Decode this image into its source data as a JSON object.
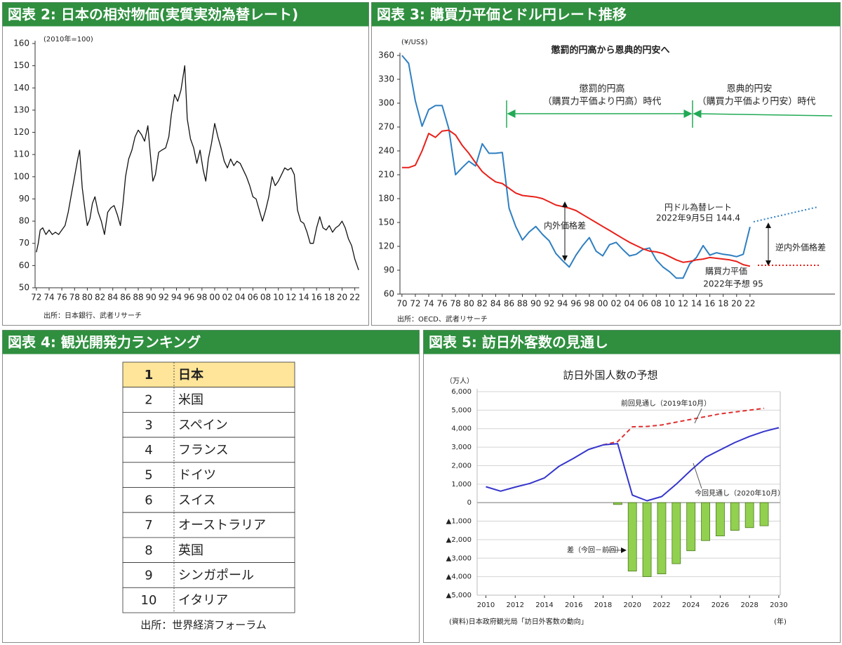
{
  "chart_data": [
    {
      "type": "line",
      "heading": "図表 2: 日本の相対物価(実質実効為替レート)",
      "annotations": [
        "(2010年=100)"
      ],
      "source": "出所：日本銀行、武者リサーチ",
      "x": [
        1972,
        1972.3,
        1972.6,
        1973,
        1973.5,
        1974,
        1974.5,
        1975,
        1975.5,
        1976,
        1976.5,
        1977,
        1977.5,
        1978,
        1978.5,
        1978.8,
        1979.2,
        1979.6,
        1980,
        1980.4,
        1980.8,
        1981.2,
        1981.7,
        1982.2,
        1982.7,
        1983.2,
        1983.7,
        1984.2,
        1984.7,
        1985.2,
        1985.6,
        1986,
        1986.5,
        1987,
        1987.5,
        1988,
        1988.5,
        1989,
        1989.5,
        1989.9,
        1990.3,
        1990.7,
        1991.2,
        1991.7,
        1992.3,
        1992.8,
        1993.2,
        1993.7,
        1994.2,
        1994.7,
        1995.3,
        1995.7,
        1996.2,
        1996.7,
        1997.2,
        1997.7,
        1998.2,
        1998.6,
        1999,
        1999.5,
        2000,
        2000.5,
        2001,
        2001.5,
        2002,
        2002.5,
        2003,
        2003.5,
        2004,
        2004.5,
        2005,
        2005.5,
        2006,
        2006.5,
        2007,
        2007.5,
        2008,
        2008.5,
        2009,
        2009.5,
        2010,
        2010.5,
        2011,
        2011.5,
        2012,
        2012.5,
        2013,
        2013.5,
        2014,
        2014.5,
        2015,
        2015.5,
        2016,
        2016.5,
        2017,
        2017.5,
        2018,
        2018.5,
        2019,
        2019.5,
        2020,
        2020.5,
        2021,
        2021.5,
        2022,
        2022.6
      ],
      "values": [
        66,
        70,
        76,
        77,
        74,
        76,
        74,
        75,
        74,
        76,
        78,
        84,
        92,
        100,
        108,
        112,
        95,
        86,
        78,
        81,
        88,
        91,
        84,
        80,
        74,
        84,
        86,
        87,
        83,
        78,
        88,
        100,
        108,
        112,
        118,
        121,
        119,
        116,
        123,
        110,
        98,
        101,
        111,
        112,
        113,
        118,
        128,
        137,
        134,
        139,
        150,
        126,
        117,
        113,
        106,
        112,
        103,
        98,
        108,
        115,
        124,
        118,
        113,
        107,
        104,
        108,
        105,
        107,
        106,
        103,
        100,
        96,
        91,
        90,
        85,
        80,
        85,
        91,
        100,
        96,
        98,
        101,
        104,
        103,
        104,
        101,
        85,
        80,
        79,
        75,
        70,
        70,
        77,
        82,
        77,
        76,
        78,
        75,
        77,
        78,
        80,
        77,
        72,
        69,
        63,
        58
      ],
      "color": "#111111",
      "xlim": [
        1971.8,
        2022.7
      ],
      "xticks": [
        {
          "value": 1972,
          "label": "72"
        },
        {
          "value": 1974,
          "label": "74"
        },
        {
          "value": 1976,
          "label": "76"
        },
        {
          "value": 1978,
          "label": "78"
        },
        {
          "value": 1980,
          "label": "80"
        },
        {
          "value": 1982,
          "label": "82"
        },
        {
          "value": 1984,
          "label": "84"
        },
        {
          "value": 1986,
          "label": "86"
        },
        {
          "value": 1988,
          "label": "88"
        },
        {
          "value": 1990,
          "label": "90"
        },
        {
          "value": 1992,
          "label": "92"
        },
        {
          "value": 1994,
          "label": "94"
        },
        {
          "value": 1996,
          "label": "96"
        },
        {
          "value": 1998,
          "label": "98"
        },
        {
          "value": 2000,
          "label": "00"
        },
        {
          "value": 2002,
          "label": "02"
        },
        {
          "value": 2004,
          "label": "04"
        },
        {
          "value": 2006,
          "label": "06"
        },
        {
          "value": 2008,
          "label": "08"
        },
        {
          "value": 2010,
          "label": "10"
        },
        {
          "value": 2012,
          "label": "12"
        },
        {
          "value": 2014,
          "label": "14"
        },
        {
          "value": 2016,
          "label": "16"
        },
        {
          "value": 2018,
          "label": "18"
        },
        {
          "value": 2020,
          "label": "20"
        },
        {
          "value": 2022,
          "label": "22"
        }
      ],
      "ylim": [
        50,
        160
      ],
      "yticks": [
        50,
        60,
        70,
        80,
        90,
        100,
        110,
        120,
        130,
        140,
        150,
        160
      ],
      "grid": false
    },
    {
      "type": "line",
      "heading": "図表 3: 購買力平価とドル円レート推移",
      "title": "懲罰的円高から恩典的円安へ",
      "annotations": [
        "(¥/US$)",
        "懲罰的円高",
        "（購買力平価より円高）時代",
        "恩典的円安",
        "（購買力平価より円安）時代",
        "内外価格差",
        "2022年9月5日 144.4",
        "2022年予想 95",
        "逆内外価格差"
      ],
      "source": "出所：OECD、武者リサーチ",
      "x": [
        1970,
        1971,
        1972,
        1973,
        1974,
        1975,
        1976,
        1977,
        1978,
        1979,
        1980,
        1981,
        1982,
        1983,
        1984,
        1985,
        1986,
        1987,
        1988,
        1989,
        1990,
        1991,
        1992,
        1993,
        1994,
        1995,
        1996,
        1997,
        1998,
        1999,
        2000,
        2001,
        2002,
        2003,
        2004,
        2005,
        2006,
        2007,
        2008,
        2009,
        2010,
        2011,
        2012,
        2013,
        2014,
        2015,
        2016,
        2017,
        2018,
        2019,
        2020,
        2021,
        2022
      ],
      "series": [
        {
          "name": "円ドル為替レート",
          "color": "#2f7fc1",
          "values": [
            360,
            350,
            303,
            271,
            292,
            297,
            297,
            268,
            210,
            219,
            227,
            221,
            249,
            237,
            237,
            238,
            168,
            145,
            128,
            138,
            145,
            135,
            127,
            111,
            102,
            94,
            109,
            121,
            131,
            114,
            108,
            122,
            125,
            116,
            108,
            110,
            116,
            118,
            103,
            94,
            88,
            80,
            80,
            98,
            106,
            121,
            109,
            112,
            110,
            109,
            107,
            110,
            144.4
          ]
        },
        {
          "name": "購買力平価",
          "color": "#e8201a",
          "values": [
            219,
            219,
            222,
            240,
            262,
            257,
            265,
            266,
            260,
            247,
            237,
            225,
            214,
            207,
            201,
            199,
            193,
            187,
            184,
            183,
            182,
            180,
            176,
            172,
            170,
            168,
            165,
            160,
            155,
            150,
            145,
            140,
            135,
            130,
            125,
            121,
            117,
            114,
            113,
            111,
            107,
            103,
            100,
            101,
            103,
            104,
            106,
            105,
            104,
            103,
            101,
            97,
            95
          ]
        }
      ],
      "xlim": [
        1969.7,
        2034.7
      ],
      "xticks": [
        {
          "value": 1970,
          "label": "70"
        },
        {
          "value": 1972,
          "label": "72"
        },
        {
          "value": 1974,
          "label": "74"
        },
        {
          "value": 1976,
          "label": "76"
        },
        {
          "value": 1978,
          "label": "78"
        },
        {
          "value": 1980,
          "label": "80"
        },
        {
          "value": 1982,
          "label": "82"
        },
        {
          "value": 1984,
          "label": "84"
        },
        {
          "value": 1986,
          "label": "86"
        },
        {
          "value": 1988,
          "label": "88"
        },
        {
          "value": 1990,
          "label": "90"
        },
        {
          "value": 1992,
          "label": "92"
        },
        {
          "value": 1994,
          "label": "94"
        },
        {
          "value": 1996,
          "label": "96"
        },
        {
          "value": 1998,
          "label": "98"
        },
        {
          "value": 2000,
          "label": "00"
        },
        {
          "value": 2002,
          "label": "02"
        },
        {
          "value": 2004,
          "label": "04"
        },
        {
          "value": 2006,
          "label": "06"
        },
        {
          "value": 2008,
          "label": "08"
        },
        {
          "value": 2010,
          "label": "10"
        },
        {
          "value": 2012,
          "label": "12"
        },
        {
          "value": 2014,
          "label": "14"
        },
        {
          "value": 2016,
          "label": "16"
        },
        {
          "value": 2018,
          "label": "18"
        },
        {
          "value": 2020,
          "label": "20"
        },
        {
          "value": 2022,
          "label": "22"
        }
      ],
      "ylim": [
        60,
        360
      ],
      "yticks": [
        60,
        90,
        120,
        150,
        180,
        210,
        240,
        270,
        300,
        330,
        360
      ],
      "grid": false
    },
    {
      "type": "combo",
      "heading": "図表 5: 訪日外客数の見通し",
      "title": "訪日外国人数の予想",
      "annotations": [
        "（万人）",
        "(年)"
      ],
      "source": "(資料)日本政府観光局「訪日外客数の動向」",
      "series": [
        {
          "name": "前回見通し（2019年10月）",
          "type": "line",
          "line_style": "dashed",
          "color": "#e03030",
          "x": [
            2018,
            2019,
            2020,
            2021,
            2022,
            2023,
            2024,
            2025,
            2026,
            2027,
            2028,
            2029
          ],
          "values": [
            3120,
            3300,
            4100,
            4120,
            4200,
            4350,
            4500,
            4650,
            4800,
            4900,
            5000,
            5100
          ]
        },
        {
          "name": "今回見通し（2020年10月）",
          "type": "line",
          "color": "#3535cc",
          "x": [
            2010,
            2011,
            2012,
            2013,
            2014,
            2015,
            2016,
            2017,
            2018,
            2019,
            2020,
            2021,
            2022,
            2023,
            2024,
            2025,
            2026,
            2027,
            2028,
            2029,
            2030
          ],
          "values": [
            860,
            620,
            840,
            1040,
            1340,
            1970,
            2400,
            2870,
            3120,
            3190,
            410,
            100,
            330,
            1000,
            1750,
            2450,
            2850,
            3250,
            3580,
            3850,
            4050
          ]
        },
        {
          "name": "差（今回－前回）",
          "type": "bar",
          "color": "#92d050",
          "x": [
            2019,
            2020,
            2021,
            2022,
            2023,
            2024,
            2025,
            2026,
            2027,
            2028,
            2029
          ],
          "values": [
            -100,
            -3700,
            -4000,
            -3850,
            -3300,
            -2600,
            -2050,
            -1800,
            -1500,
            -1350,
            -1250
          ]
        }
      ],
      "xlim": [
        2009.4,
        2030.1
      ],
      "xticks": [
        2010,
        2012,
        2014,
        2016,
        2018,
        2020,
        2022,
        2024,
        2026,
        2028,
        2030
      ],
      "ylim": [
        -5000,
        6000
      ],
      "yticks": [
        {
          "value": -5000,
          "label": "▲5,000"
        },
        {
          "value": -4000,
          "label": "▲4,000"
        },
        {
          "value": -3000,
          "label": "▲3,000"
        },
        {
          "value": -2000,
          "label": "▲2,000"
        },
        {
          "value": -1000,
          "label": "▲1,000"
        },
        0,
        {
          "value": 1000,
          "label": "1,000"
        },
        {
          "value": 2000,
          "label": "2,000"
        },
        {
          "value": 3000,
          "label": "3,000"
        },
        {
          "value": 4000,
          "label": "4,000"
        },
        {
          "value": 5000,
          "label": "5,000"
        },
        {
          "value": 6000,
          "label": "6,000"
        }
      ],
      "grid": true
    }
  ],
  "table": {
    "heading": "図表 4: 観光開発力ランキング",
    "rows": [
      [
        "1",
        "日本"
      ],
      [
        "2",
        "米国"
      ],
      [
        "3",
        "スペイン"
      ],
      [
        "4",
        "フランス"
      ],
      [
        "5",
        "ドイツ"
      ],
      [
        "6",
        "スイス"
      ],
      [
        "7",
        "オーストラリア"
      ],
      [
        "8",
        "英国"
      ],
      [
        "9",
        "シンガポール"
      ],
      [
        "10",
        "イタリア"
      ]
    ],
    "source": "出所：世界経済フォーラム"
  }
}
